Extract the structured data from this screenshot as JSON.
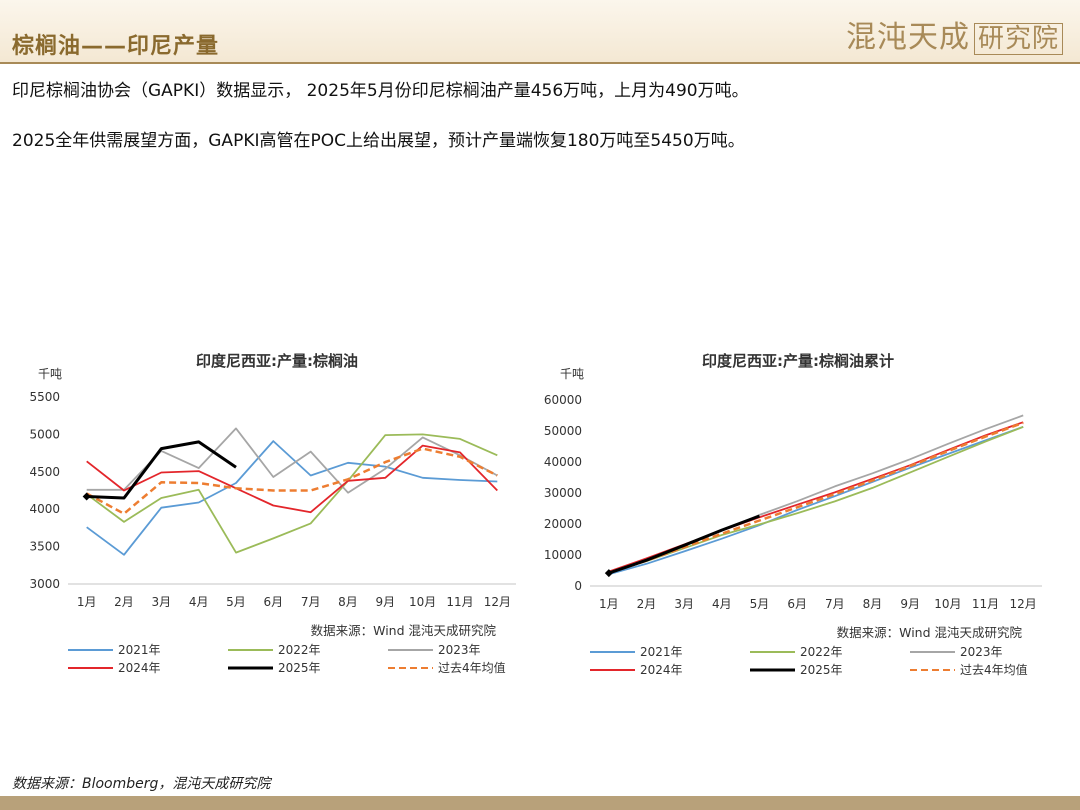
{
  "header": {
    "title": "棕榈油——印尼产量",
    "logo_main": "混沌天成",
    "logo_boxed": "研究院"
  },
  "paragraphs": [
    "印尼棕榈油协会（GAPKI）数据显示， 2025年5月份印尼棕榈油产量456万吨，上月为490万吨。",
    "2025全年供需展望方面，GAPKI高管在POC上给出展望，预计产量端恢复180万吨至5450万吨。"
  ],
  "footer": {
    "source": "数据来源：Bloomberg，混沌天成研究院"
  },
  "colors": {
    "y2021": "#5b9bd5",
    "y2022": "#9bbb59",
    "y2023": "#a6a6a6",
    "y2024": "#e3262b",
    "y2025": "#000000",
    "avg": "#ed7d31"
  },
  "chart_data": [
    {
      "type": "line",
      "title": "印度尼西亚:产量:棕榈油",
      "unit_label": "千吨",
      "source": "数据来源：Wind  混沌天成研究院",
      "categories": [
        "1月",
        "2月",
        "3月",
        "4月",
        "5月",
        "6月",
        "7月",
        "8月",
        "9月",
        "10月",
        "11月",
        "12月"
      ],
      "ylim": [
        3000,
        5500
      ],
      "yticks": [
        3000,
        3500,
        4000,
        4500,
        5000,
        5500
      ],
      "grid": false,
      "legend_position": "bottom",
      "series": [
        {
          "name": "2021年",
          "color_key": "y2021",
          "style": "solid",
          "values": [
            3760,
            3390,
            4020,
            4090,
            4350,
            4910,
            4450,
            4620,
            4570,
            4420,
            4390,
            4370
          ]
        },
        {
          "name": "2022年",
          "color_key": "y2022",
          "style": "solid",
          "values": [
            4200,
            3830,
            4150,
            4260,
            3420,
            3610,
            3810,
            4380,
            4990,
            5000,
            4940,
            4720
          ]
        },
        {
          "name": "2023年",
          "color_key": "y2023",
          "style": "solid",
          "values": [
            4260,
            4260,
            4780,
            4550,
            5080,
            4430,
            4770,
            4220,
            4540,
            4960,
            4720,
            4450
          ]
        },
        {
          "name": "2024年",
          "color_key": "y2024",
          "style": "solid",
          "values": [
            4640,
            4250,
            4490,
            4510,
            4280,
            4050,
            3960,
            4380,
            4420,
            4850,
            4760,
            4250
          ]
        },
        {
          "name": "2025年",
          "color_key": "y2025",
          "style": "solid",
          "values": [
            4170,
            4150,
            4810,
            4900,
            4560,
            null,
            null,
            null,
            null,
            null,
            null,
            null
          ]
        },
        {
          "name": "过去4年均值",
          "color_key": "avg",
          "style": "dashed",
          "values": [
            4210,
            3940,
            4360,
            4350,
            4280,
            4250,
            4250,
            4400,
            4630,
            4810,
            4700,
            4450
          ]
        }
      ]
    },
    {
      "type": "line",
      "title": "印度尼西亚:产量:棕榈油累计",
      "unit_label": "千吨",
      "source": "数据来源：Wind  混沌天成研究院",
      "categories": [
        "1月",
        "2月",
        "3月",
        "4月",
        "5月",
        "6月",
        "7月",
        "8月",
        "9月",
        "10月",
        "11月",
        "12月"
      ],
      "ylim": [
        0,
        60000
      ],
      "yticks": [
        0,
        10000,
        20000,
        30000,
        40000,
        50000,
        60000
      ],
      "grid": false,
      "legend_position": "bottom",
      "series": [
        {
          "name": "2021年",
          "color_key": "y2021",
          "style": "solid",
          "values": [
            3760,
            7150,
            11170,
            15260,
            19610,
            24520,
            28970,
            33590,
            38160,
            42580,
            46970,
            51340
          ]
        },
        {
          "name": "2022年",
          "color_key": "y2022",
          "style": "solid",
          "values": [
            4200,
            8030,
            12180,
            16440,
            19860,
            23470,
            27280,
            31660,
            36650,
            41650,
            46590,
            51310
          ]
        },
        {
          "name": "2023年",
          "color_key": "y2023",
          "style": "solid",
          "values": [
            4260,
            8520,
            13300,
            17850,
            22930,
            27360,
            32130,
            36350,
            40890,
            45850,
            50570,
            55020
          ]
        },
        {
          "name": "2024年",
          "color_key": "y2024",
          "style": "solid",
          "values": [
            4640,
            8890,
            13380,
            17890,
            22170,
            26220,
            30180,
            34560,
            38980,
            43830,
            48590,
            52840
          ]
        },
        {
          "name": "2025年",
          "color_key": "y2025",
          "style": "solid",
          "values": [
            4170,
            8320,
            13130,
            18030,
            22590,
            null,
            null,
            null,
            null,
            null,
            null,
            null
          ]
        },
        {
          "name": "过去4年均值",
          "color_key": "avg",
          "style": "dashed",
          "values": [
            4210,
            8150,
            12510,
            16860,
            21140,
            25390,
            29640,
            34040,
            38670,
            43480,
            48180,
            52630
          ]
        }
      ]
    }
  ]
}
